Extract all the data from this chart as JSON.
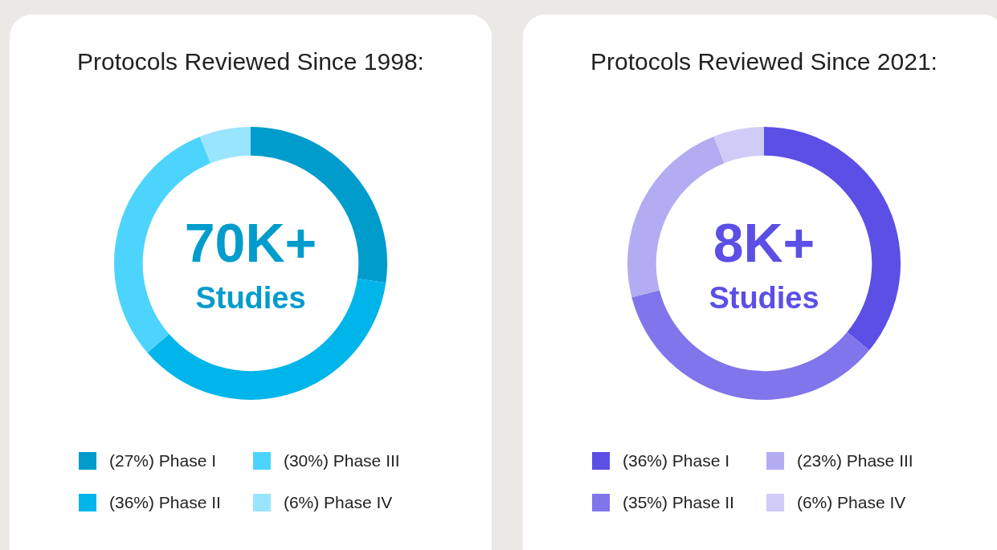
{
  "chart_data": [
    {
      "type": "donut",
      "title": "Protocols Reviewed Since 1998:",
      "annotations": [
        "70K+",
        "Studies"
      ],
      "categories": [
        "(27%) Phase I",
        "(36%) Phase II",
        "(30%) Phase III",
        "(6%) Phase IV"
      ],
      "values": [
        27,
        36,
        30,
        6
      ],
      "colors": [
        "#009ccc",
        "#00b5ea",
        "#4dd4fd",
        "#99e5fe"
      ],
      "legend": "bottom"
    },
    {
      "type": "donut",
      "title": "Protocols Reviewed Since 2021:",
      "annotations": [
        "8K+",
        "Studies"
      ],
      "categories": [
        "(36%) Phase I",
        "(35%) Phase II",
        "(23%) Phase III",
        "(6%) Phase IV"
      ],
      "values": [
        36,
        35,
        23,
        6
      ],
      "colors": [
        "#5b4fe6",
        "#8075eb",
        "#b3acf2",
        "#d0cbf7"
      ],
      "legend": "bottom"
    }
  ]
}
